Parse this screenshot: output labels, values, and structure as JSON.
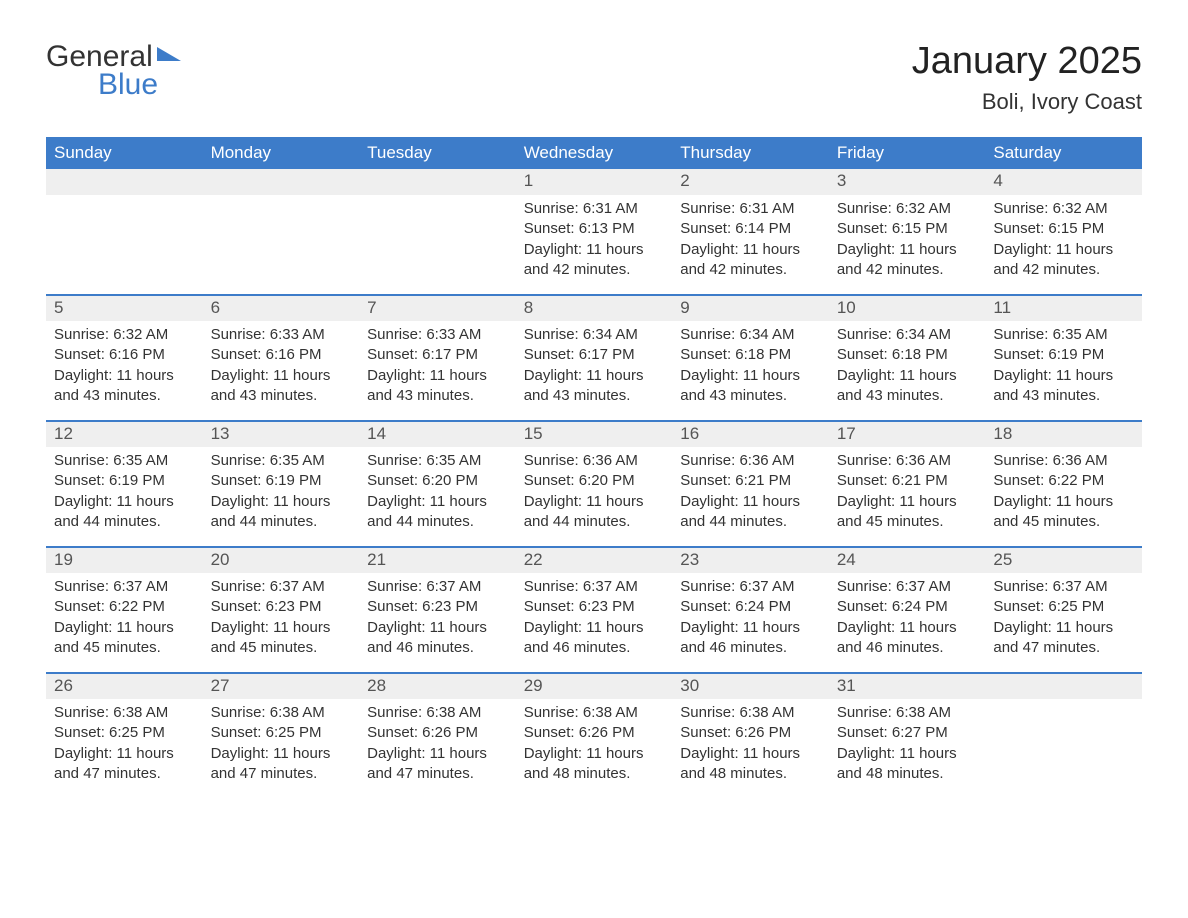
{
  "branding": {
    "logo_word1": "General",
    "logo_word2": "Blue",
    "logo_color": "#3d7cc9",
    "text_color": "#333333"
  },
  "title": {
    "month_year": "January 2025",
    "location": "Boli, Ivory Coast",
    "title_fontsize": 38,
    "location_fontsize": 22
  },
  "calendar": {
    "type": "table",
    "header_bg": "#3d7cc9",
    "header_fg": "#ffffff",
    "daynum_bg": "#efefef",
    "row_divider_color": "#3d7cc9",
    "background_color": "#ffffff",
    "cell_fontsize": 15,
    "day_headers": [
      "Sunday",
      "Monday",
      "Tuesday",
      "Wednesday",
      "Thursday",
      "Friday",
      "Saturday"
    ],
    "weeks": [
      [
        null,
        null,
        null,
        {
          "n": "1",
          "sunrise": "Sunrise: 6:31 AM",
          "sunset": "Sunset: 6:13 PM",
          "daylight": "Daylight: 11 hours and 42 minutes."
        },
        {
          "n": "2",
          "sunrise": "Sunrise: 6:31 AM",
          "sunset": "Sunset: 6:14 PM",
          "daylight": "Daylight: 11 hours and 42 minutes."
        },
        {
          "n": "3",
          "sunrise": "Sunrise: 6:32 AM",
          "sunset": "Sunset: 6:15 PM",
          "daylight": "Daylight: 11 hours and 42 minutes."
        },
        {
          "n": "4",
          "sunrise": "Sunrise: 6:32 AM",
          "sunset": "Sunset: 6:15 PM",
          "daylight": "Daylight: 11 hours and 42 minutes."
        }
      ],
      [
        {
          "n": "5",
          "sunrise": "Sunrise: 6:32 AM",
          "sunset": "Sunset: 6:16 PM",
          "daylight": "Daylight: 11 hours and 43 minutes."
        },
        {
          "n": "6",
          "sunrise": "Sunrise: 6:33 AM",
          "sunset": "Sunset: 6:16 PM",
          "daylight": "Daylight: 11 hours and 43 minutes."
        },
        {
          "n": "7",
          "sunrise": "Sunrise: 6:33 AM",
          "sunset": "Sunset: 6:17 PM",
          "daylight": "Daylight: 11 hours and 43 minutes."
        },
        {
          "n": "8",
          "sunrise": "Sunrise: 6:34 AM",
          "sunset": "Sunset: 6:17 PM",
          "daylight": "Daylight: 11 hours and 43 minutes."
        },
        {
          "n": "9",
          "sunrise": "Sunrise: 6:34 AM",
          "sunset": "Sunset: 6:18 PM",
          "daylight": "Daylight: 11 hours and 43 minutes."
        },
        {
          "n": "10",
          "sunrise": "Sunrise: 6:34 AM",
          "sunset": "Sunset: 6:18 PM",
          "daylight": "Daylight: 11 hours and 43 minutes."
        },
        {
          "n": "11",
          "sunrise": "Sunrise: 6:35 AM",
          "sunset": "Sunset: 6:19 PM",
          "daylight": "Daylight: 11 hours and 43 minutes."
        }
      ],
      [
        {
          "n": "12",
          "sunrise": "Sunrise: 6:35 AM",
          "sunset": "Sunset: 6:19 PM",
          "daylight": "Daylight: 11 hours and 44 minutes."
        },
        {
          "n": "13",
          "sunrise": "Sunrise: 6:35 AM",
          "sunset": "Sunset: 6:19 PM",
          "daylight": "Daylight: 11 hours and 44 minutes."
        },
        {
          "n": "14",
          "sunrise": "Sunrise: 6:35 AM",
          "sunset": "Sunset: 6:20 PM",
          "daylight": "Daylight: 11 hours and 44 minutes."
        },
        {
          "n": "15",
          "sunrise": "Sunrise: 6:36 AM",
          "sunset": "Sunset: 6:20 PM",
          "daylight": "Daylight: 11 hours and 44 minutes."
        },
        {
          "n": "16",
          "sunrise": "Sunrise: 6:36 AM",
          "sunset": "Sunset: 6:21 PM",
          "daylight": "Daylight: 11 hours and 44 minutes."
        },
        {
          "n": "17",
          "sunrise": "Sunrise: 6:36 AM",
          "sunset": "Sunset: 6:21 PM",
          "daylight": "Daylight: 11 hours and 45 minutes."
        },
        {
          "n": "18",
          "sunrise": "Sunrise: 6:36 AM",
          "sunset": "Sunset: 6:22 PM",
          "daylight": "Daylight: 11 hours and 45 minutes."
        }
      ],
      [
        {
          "n": "19",
          "sunrise": "Sunrise: 6:37 AM",
          "sunset": "Sunset: 6:22 PM",
          "daylight": "Daylight: 11 hours and 45 minutes."
        },
        {
          "n": "20",
          "sunrise": "Sunrise: 6:37 AM",
          "sunset": "Sunset: 6:23 PM",
          "daylight": "Daylight: 11 hours and 45 minutes."
        },
        {
          "n": "21",
          "sunrise": "Sunrise: 6:37 AM",
          "sunset": "Sunset: 6:23 PM",
          "daylight": "Daylight: 11 hours and 46 minutes."
        },
        {
          "n": "22",
          "sunrise": "Sunrise: 6:37 AM",
          "sunset": "Sunset: 6:23 PM",
          "daylight": "Daylight: 11 hours and 46 minutes."
        },
        {
          "n": "23",
          "sunrise": "Sunrise: 6:37 AM",
          "sunset": "Sunset: 6:24 PM",
          "daylight": "Daylight: 11 hours and 46 minutes."
        },
        {
          "n": "24",
          "sunrise": "Sunrise: 6:37 AM",
          "sunset": "Sunset: 6:24 PM",
          "daylight": "Daylight: 11 hours and 46 minutes."
        },
        {
          "n": "25",
          "sunrise": "Sunrise: 6:37 AM",
          "sunset": "Sunset: 6:25 PM",
          "daylight": "Daylight: 11 hours and 47 minutes."
        }
      ],
      [
        {
          "n": "26",
          "sunrise": "Sunrise: 6:38 AM",
          "sunset": "Sunset: 6:25 PM",
          "daylight": "Daylight: 11 hours and 47 minutes."
        },
        {
          "n": "27",
          "sunrise": "Sunrise: 6:38 AM",
          "sunset": "Sunset: 6:25 PM",
          "daylight": "Daylight: 11 hours and 47 minutes."
        },
        {
          "n": "28",
          "sunrise": "Sunrise: 6:38 AM",
          "sunset": "Sunset: 6:26 PM",
          "daylight": "Daylight: 11 hours and 47 minutes."
        },
        {
          "n": "29",
          "sunrise": "Sunrise: 6:38 AM",
          "sunset": "Sunset: 6:26 PM",
          "daylight": "Daylight: 11 hours and 48 minutes."
        },
        {
          "n": "30",
          "sunrise": "Sunrise: 6:38 AM",
          "sunset": "Sunset: 6:26 PM",
          "daylight": "Daylight: 11 hours and 48 minutes."
        },
        {
          "n": "31",
          "sunrise": "Sunrise: 6:38 AM",
          "sunset": "Sunset: 6:27 PM",
          "daylight": "Daylight: 11 hours and 48 minutes."
        },
        null
      ]
    ]
  }
}
